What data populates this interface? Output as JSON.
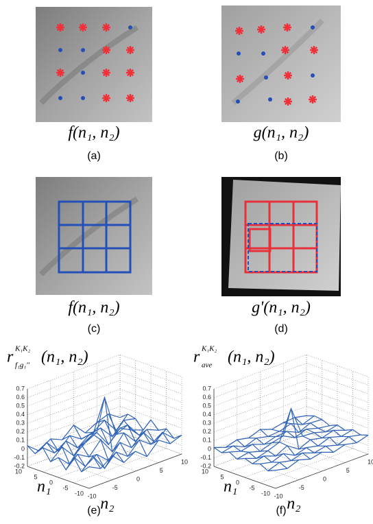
{
  "panels": [
    {
      "caption": "(a)",
      "label": "f(n₁, n₂)"
    },
    {
      "caption": "(b)",
      "label": "g(n₁, n₂)"
    },
    {
      "caption": "(c)",
      "label": "f(n₁, n₂)"
    },
    {
      "caption": "(d)",
      "label": "g'(n₁, n₂)"
    },
    {
      "caption": "(e)",
      "plot": {
        "type": "surface",
        "title": {
          "base": "r",
          "sup": "K₁K₂",
          "sub": "f₁g₁''",
          "args": "(n₁, n₂)"
        },
        "xlabel": "n₁",
        "ylabel": "n₂",
        "xlim": [
          -10,
          10
        ],
        "ylim": [
          -10,
          10
        ],
        "zlim": [
          -0.2,
          0.7
        ],
        "xticks": [
          10,
          5,
          0,
          -5,
          -10
        ],
        "yticks": [
          -10,
          -5,
          0,
          5,
          10
        ],
        "zticks": [
          0.7,
          0.6,
          0.5,
          0.4,
          0.3,
          0.2,
          0.1,
          0,
          -0.1,
          -0.2
        ],
        "grid": true,
        "color": "#2e62b8",
        "x": [
          -10,
          -7.5,
          -5,
          -2.5,
          0,
          2.5,
          5,
          7.5,
          10
        ],
        "y": [
          -10,
          -7.5,
          -5,
          -2.5,
          0,
          2.5,
          5,
          7.5,
          10
        ],
        "z": [
          [
            0.05,
            -0.02,
            0.08,
            -0.05,
            0.03,
            -0.08,
            0.06,
            -0.03,
            0.02
          ],
          [
            -0.04,
            0.09,
            -0.1,
            0.04,
            -0.06,
            0.08,
            -0.02,
            0.07,
            -0.05
          ],
          [
            0.1,
            -0.06,
            0.03,
            -0.09,
            0.07,
            -0.04,
            0.09,
            -0.08,
            0.03
          ],
          [
            -0.08,
            0.05,
            -0.03,
            0.12,
            -0.07,
            0.1,
            -0.05,
            0.04,
            -0.02
          ],
          [
            0.03,
            -0.1,
            0.08,
            0.15,
            0.53,
            0.05,
            0.11,
            -0.06,
            0.07
          ],
          [
            -0.05,
            0.07,
            -0.08,
            0.02,
            0.09,
            -0.1,
            0.04,
            -0.03,
            -0.08
          ],
          [
            0.08,
            -0.03,
            0.06,
            -0.07,
            0.03,
            0.06,
            -0.09,
            0.05,
            0.02
          ],
          [
            -0.02,
            0.06,
            -0.09,
            0.04,
            -0.05,
            -0.02,
            0.07,
            -0.1,
            0.04
          ],
          [
            0.04,
            -0.07,
            0.02,
            -0.04,
            0.08,
            -0.06,
            0.01,
            0.06,
            -0.03
          ]
        ]
      }
    },
    {
      "caption": "(f)",
      "plot": {
        "type": "surface",
        "title": {
          "base": "r",
          "sup": "K₁K₂",
          "sub": "ave",
          "args": "(n₁, n₂)"
        },
        "xlabel": "n₁",
        "ylabel": "n₂",
        "xlim": [
          -10,
          10
        ],
        "ylim": [
          -10,
          10
        ],
        "zlim": [
          -0.2,
          0.7
        ],
        "xticks": [
          10,
          5,
          0,
          -5,
          -10
        ],
        "yticks": [
          -10,
          -5,
          0,
          5,
          10
        ],
        "zticks": [
          0.7,
          0.6,
          0.5,
          0.4,
          0.3,
          0.2,
          0.1,
          0,
          -0.1,
          -0.2
        ],
        "grid": true,
        "color": "#2e62b8",
        "x": [
          -10,
          -7.5,
          -5,
          -2.5,
          0,
          2.5,
          5,
          7.5,
          10
        ],
        "y": [
          -10,
          -7.5,
          -5,
          -2.5,
          0,
          2.5,
          5,
          7.5,
          10
        ],
        "z": [
          [
            0.01,
            -0.02,
            0.03,
            -0.01,
            0.02,
            -0.03,
            0.01,
            -0.02,
            0.02
          ],
          [
            -0.03,
            0.02,
            -0.01,
            0.03,
            -0.02,
            0.01,
            -0.03,
            0.02,
            -0.01
          ],
          [
            0.02,
            -0.01,
            0.04,
            -0.03,
            0.01,
            -0.02,
            0.03,
            -0.01,
            0.02
          ],
          [
            -0.01,
            0.03,
            -0.02,
            0.05,
            -0.04,
            0.02,
            -0.01,
            0.03,
            -0.02
          ],
          [
            0.02,
            -0.03,
            0.01,
            0.06,
            0.4,
            0.03,
            0.02,
            -0.02,
            0.01
          ],
          [
            -0.02,
            0.01,
            -0.03,
            0.02,
            0.05,
            -0.02,
            0.03,
            -0.01,
            -0.03
          ],
          [
            0.03,
            -0.01,
            0.02,
            -0.03,
            0.01,
            0.02,
            -0.04,
            0.02,
            0.01
          ],
          [
            -0.01,
            0.02,
            -0.04,
            0.01,
            -0.02,
            -0.01,
            0.03,
            -0.03,
            0.02
          ],
          [
            0.02,
            -0.03,
            0.01,
            -0.02,
            0.03,
            -0.02,
            0.01,
            0.02,
            -0.01
          ]
        ]
      }
    }
  ]
}
